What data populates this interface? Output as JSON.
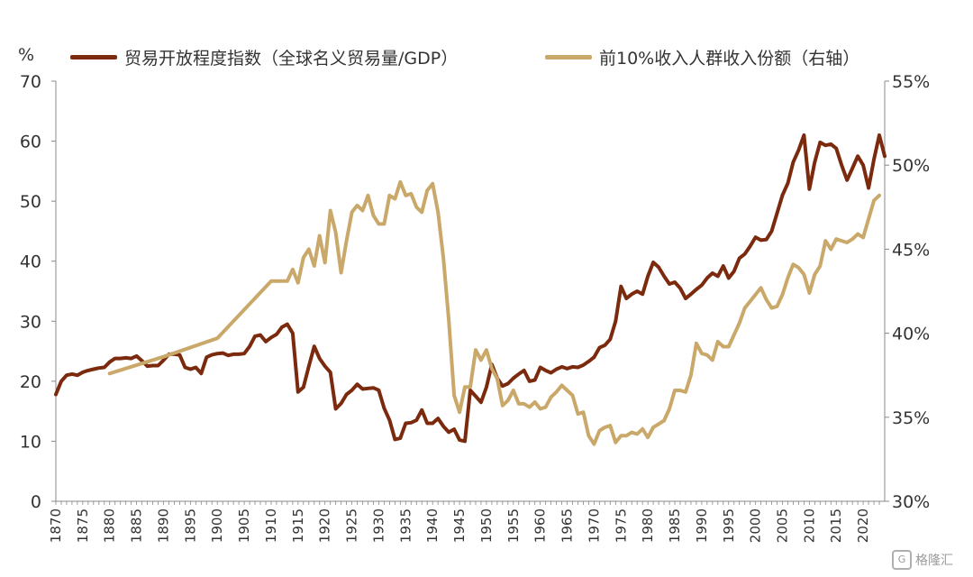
{
  "legend": {
    "unit": "%",
    "series1": "贸易开放程度指数（全球名义贸易量/GDP）",
    "series2": "前10%收入人群收入份额（右轴）"
  },
  "watermark": "格隆汇",
  "colors": {
    "series1": "#7B2A0E",
    "series2": "#C9A86A",
    "axis": "#888888"
  },
  "chart_data": {
    "type": "line",
    "x_range": [
      1870,
      2022
    ],
    "y_left": {
      "range": [
        0,
        70
      ],
      "ticks": [
        "0",
        "10",
        "20",
        "30",
        "40",
        "50",
        "60",
        "70"
      ]
    },
    "y_right": {
      "range": [
        30,
        55
      ],
      "ticks": [
        "30%",
        "35%",
        "40%",
        "45%",
        "50%",
        "55%"
      ]
    },
    "x_ticks": [
      "1870",
      "1875",
      "1880",
      "1885",
      "1890",
      "1895",
      "1900",
      "1905",
      "1910",
      "1915",
      "1920",
      "1925",
      "1930",
      "1935",
      "1940",
      "1945",
      "1950",
      "1955",
      "1960",
      "1965",
      "1970",
      "1975",
      "1980",
      "1985",
      "1990",
      "1995",
      "2000",
      "2005",
      "2010",
      "2015",
      "2020"
    ],
    "series": [
      {
        "name": "贸易开放程度指数（全球名义贸易量/GDP）",
        "axis": "left",
        "points": [
          [
            1870,
            17.8
          ],
          [
            1871,
            20
          ],
          [
            1872,
            21
          ],
          [
            1873,
            21.2
          ],
          [
            1874,
            21
          ],
          [
            1875,
            21.5
          ],
          [
            1876,
            21.8
          ],
          [
            1877,
            22
          ],
          [
            1878,
            22.2
          ],
          [
            1879,
            22.3
          ],
          [
            1880,
            23.2
          ],
          [
            1881,
            23.8
          ],
          [
            1882,
            23.8
          ],
          [
            1883,
            23.9
          ],
          [
            1884,
            23.8
          ],
          [
            1885,
            24.2
          ],
          [
            1886,
            23.4
          ],
          [
            1887,
            22.5
          ],
          [
            1888,
            22.6
          ],
          [
            1889,
            22.6
          ],
          [
            1890,
            23.5
          ],
          [
            1891,
            24.5
          ],
          [
            1892,
            24.5
          ],
          [
            1893,
            24.4
          ],
          [
            1894,
            22.3
          ],
          [
            1895,
            22
          ],
          [
            1896,
            22.3
          ],
          [
            1897,
            21.3
          ],
          [
            1898,
            24
          ],
          [
            1899,
            24.4
          ],
          [
            1900,
            24.6
          ],
          [
            1901,
            24.7
          ],
          [
            1902,
            24.3
          ],
          [
            1903,
            24.5
          ],
          [
            1904,
            24.5
          ],
          [
            1905,
            24.6
          ],
          [
            1906,
            25.8
          ],
          [
            1907,
            27.5
          ],
          [
            1908,
            27.7
          ],
          [
            1909,
            26.6
          ],
          [
            1910,
            27.3
          ],
          [
            1911,
            27.8
          ],
          [
            1912,
            29
          ],
          [
            1913,
            29.5
          ],
          [
            1914,
            28
          ],
          [
            1915,
            18.2
          ],
          [
            1916,
            19
          ],
          [
            1917,
            22.5
          ],
          [
            1918,
            25.8
          ],
          [
            1919,
            23.8
          ],
          [
            1920,
            22.5
          ],
          [
            1921,
            21.5
          ],
          [
            1922,
            15.4
          ],
          [
            1923,
            16.3
          ],
          [
            1924,
            17.8
          ],
          [
            1925,
            18.5
          ],
          [
            1926,
            19.5
          ],
          [
            1927,
            18.7
          ],
          [
            1928,
            18.8
          ],
          [
            1929,
            18.9
          ],
          [
            1930,
            18.5
          ],
          [
            1931,
            15.5
          ],
          [
            1932,
            13.5
          ],
          [
            1933,
            10.3
          ],
          [
            1934,
            10.5
          ],
          [
            1935,
            13
          ],
          [
            1936,
            13.1
          ],
          [
            1937,
            13.5
          ],
          [
            1938,
            15.2
          ],
          [
            1939,
            13
          ],
          [
            1940,
            13
          ],
          [
            1941,
            13.8
          ],
          [
            1942,
            12.5
          ],
          [
            1943,
            11.5
          ],
          [
            1944,
            12
          ],
          [
            1945,
            10.2
          ],
          [
            1946,
            10
          ],
          [
            1947,
            18.5
          ],
          [
            1948,
            17.5
          ],
          [
            1949,
            16.5
          ],
          [
            1950,
            19
          ],
          [
            1951,
            22.8
          ],
          [
            1952,
            20.5
          ],
          [
            1953,
            19.2
          ],
          [
            1954,
            19.6
          ],
          [
            1955,
            20.5
          ],
          [
            1956,
            21.2
          ],
          [
            1957,
            21.8
          ],
          [
            1958,
            20
          ],
          [
            1959,
            20.2
          ],
          [
            1960,
            22.3
          ],
          [
            1961,
            21.8
          ],
          [
            1962,
            21.4
          ],
          [
            1963,
            22
          ],
          [
            1964,
            22.4
          ],
          [
            1965,
            22.1
          ],
          [
            1966,
            22.4
          ],
          [
            1967,
            22.3
          ],
          [
            1968,
            22.7
          ],
          [
            1969,
            23.3
          ],
          [
            1970,
            24
          ],
          [
            1971,
            25.6
          ],
          [
            1972,
            26
          ],
          [
            1973,
            27
          ],
          [
            1974,
            30
          ],
          [
            1975,
            35.8
          ],
          [
            1976,
            33.8
          ],
          [
            1977,
            34.5
          ],
          [
            1978,
            35
          ],
          [
            1979,
            34.5
          ],
          [
            1980,
            37.5
          ],
          [
            1981,
            39.8
          ],
          [
            1982,
            39
          ],
          [
            1983,
            37.5
          ],
          [
            1984,
            36.2
          ],
          [
            1985,
            36.5
          ],
          [
            1986,
            35.5
          ],
          [
            1987,
            33.8
          ],
          [
            1988,
            34.5
          ],
          [
            1989,
            35.3
          ],
          [
            1990,
            36
          ],
          [
            1991,
            37.2
          ],
          [
            1992,
            38
          ],
          [
            1993,
            37.5
          ],
          [
            1994,
            39.2
          ],
          [
            1995,
            37.2
          ],
          [
            1996,
            38.3
          ],
          [
            1997,
            40.5
          ],
          [
            1998,
            41.2
          ],
          [
            1999,
            42.5
          ],
          [
            2000,
            44
          ],
          [
            2001,
            43.5
          ],
          [
            2002,
            43.6
          ],
          [
            2003,
            45
          ],
          [
            2004,
            48
          ],
          [
            2005,
            51
          ],
          [
            2006,
            53
          ],
          [
            2007,
            56.5
          ],
          [
            2008,
            58.5
          ],
          [
            2009,
            61
          ],
          [
            2010,
            52
          ],
          [
            2011,
            56.5
          ],
          [
            2012,
            59.8
          ],
          [
            2013,
            59.3
          ],
          [
            2014,
            59.5
          ],
          [
            2015,
            58.8
          ],
          [
            2016,
            56
          ],
          [
            2017,
            53.5
          ],
          [
            2018,
            55.5
          ],
          [
            2019,
            57.5
          ],
          [
            2020,
            56
          ],
          [
            2021,
            52.2
          ],
          [
            2022,
            57
          ],
          [
            2023,
            61
          ],
          [
            2024,
            57.5
          ]
        ]
      },
      {
        "name": "前10%收入人群收入份额（右轴）",
        "axis": "right",
        "points": [
          [
            1880,
            37.6
          ],
          [
            1890,
            38.6
          ],
          [
            1900,
            39.7
          ],
          [
            1910,
            43.1
          ],
          [
            1913,
            43.1
          ],
          [
            1914,
            43.8
          ],
          [
            1915,
            43
          ],
          [
            1916,
            44.5
          ],
          [
            1917,
            45
          ],
          [
            1918,
            44
          ],
          [
            1919,
            45.8
          ],
          [
            1920,
            44.2
          ],
          [
            1921,
            47.3
          ],
          [
            1922,
            46
          ],
          [
            1923,
            43.6
          ],
          [
            1924,
            45.5
          ],
          [
            1925,
            47.2
          ],
          [
            1926,
            47.6
          ],
          [
            1927,
            47.3
          ],
          [
            1928,
            48.2
          ],
          [
            1929,
            47
          ],
          [
            1930,
            46.5
          ],
          [
            1931,
            46.5
          ],
          [
            1932,
            48.2
          ],
          [
            1933,
            48
          ],
          [
            1934,
            49
          ],
          [
            1935,
            48.2
          ],
          [
            1936,
            48.3
          ],
          [
            1937,
            47.5
          ],
          [
            1938,
            47.2
          ],
          [
            1939,
            48.5
          ],
          [
            1940,
            48.9
          ],
          [
            1941,
            47.2
          ],
          [
            1942,
            44.5
          ],
          [
            1943,
            40.8
          ],
          [
            1944,
            36.3
          ],
          [
            1945,
            35.3
          ],
          [
            1946,
            36.8
          ],
          [
            1947,
            36.8
          ],
          [
            1948,
            39
          ],
          [
            1949,
            38.4
          ],
          [
            1950,
            39
          ],
          [
            1951,
            37.9
          ],
          [
            1952,
            37.3
          ],
          [
            1953,
            35.7
          ],
          [
            1954,
            36
          ],
          [
            1955,
            36.6
          ],
          [
            1956,
            35.8
          ],
          [
            1957,
            35.8
          ],
          [
            1958,
            35.6
          ],
          [
            1959,
            35.9
          ],
          [
            1960,
            35.5
          ],
          [
            1961,
            35.6
          ],
          [
            1962,
            36.2
          ],
          [
            1963,
            36.5
          ],
          [
            1964,
            36.9
          ],
          [
            1965,
            36.6
          ],
          [
            1966,
            36.3
          ],
          [
            1967,
            35.2
          ],
          [
            1968,
            35.3
          ],
          [
            1969,
            33.9
          ],
          [
            1970,
            33.4
          ],
          [
            1971,
            34.2
          ],
          [
            1972,
            34.4
          ],
          [
            1973,
            34.5
          ],
          [
            1974,
            33.5
          ],
          [
            1975,
            33.9
          ],
          [
            1976,
            33.9
          ],
          [
            1977,
            34.1
          ],
          [
            1978,
            34
          ],
          [
            1979,
            34.3
          ],
          [
            1980,
            33.8
          ],
          [
            1981,
            34.4
          ],
          [
            1982,
            34.6
          ],
          [
            1983,
            34.8
          ],
          [
            1984,
            35.5
          ],
          [
            1985,
            36.6
          ],
          [
            1986,
            36.6
          ],
          [
            1987,
            36.5
          ],
          [
            1988,
            37.5
          ],
          [
            1989,
            39.4
          ],
          [
            1990,
            38.8
          ],
          [
            1991,
            38.7
          ],
          [
            1992,
            38.4
          ],
          [
            1993,
            39.5
          ],
          [
            1994,
            39.2
          ],
          [
            1995,
            39.2
          ],
          [
            1996,
            39.9
          ],
          [
            1997,
            40.6
          ],
          [
            1998,
            41.5
          ],
          [
            1999,
            41.9
          ],
          [
            2000,
            42.3
          ],
          [
            2001,
            42.7
          ],
          [
            2002,
            42
          ],
          [
            2003,
            41.5
          ],
          [
            2004,
            41.6
          ],
          [
            2005,
            42.3
          ],
          [
            2006,
            43.3
          ],
          [
            2007,
            44.1
          ],
          [
            2008,
            43.9
          ],
          [
            2009,
            43.5
          ],
          [
            2010,
            42.4
          ],
          [
            2011,
            43.5
          ],
          [
            2012,
            44
          ],
          [
            2013,
            45.5
          ],
          [
            2014,
            45
          ],
          [
            2015,
            45.6
          ],
          [
            2016,
            45.5
          ],
          [
            2017,
            45.4
          ],
          [
            2018,
            45.6
          ],
          [
            2019,
            45.9
          ],
          [
            2020,
            45.7
          ],
          [
            2021,
            46.8
          ],
          [
            2022,
            47.9
          ],
          [
            2023,
            48.2
          ]
        ]
      }
    ]
  }
}
